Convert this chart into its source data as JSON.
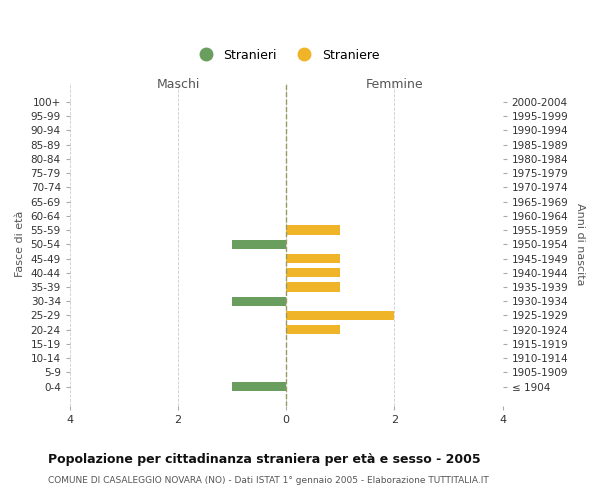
{
  "age_groups": [
    "100+",
    "95-99",
    "90-94",
    "85-89",
    "80-84",
    "75-79",
    "70-74",
    "65-69",
    "60-64",
    "55-59",
    "50-54",
    "45-49",
    "40-44",
    "35-39",
    "30-34",
    "25-29",
    "20-24",
    "15-19",
    "10-14",
    "5-9",
    "0-4"
  ],
  "birth_years": [
    "≤ 1904",
    "1905-1909",
    "1910-1914",
    "1915-1919",
    "1920-1924",
    "1925-1929",
    "1930-1934",
    "1935-1939",
    "1940-1944",
    "1945-1949",
    "1950-1954",
    "1955-1959",
    "1960-1964",
    "1965-1969",
    "1970-1974",
    "1975-1979",
    "1980-1984",
    "1985-1989",
    "1990-1994",
    "1995-1999",
    "2000-2004"
  ],
  "males": [
    0,
    0,
    0,
    0,
    0,
    0,
    0,
    0,
    0,
    0,
    1,
    0,
    0,
    0,
    1,
    0,
    0,
    0,
    0,
    0,
    1
  ],
  "females": [
    0,
    0,
    0,
    0,
    0,
    0,
    0,
    0,
    0,
    1,
    0,
    1,
    1,
    1,
    0,
    2,
    1,
    0,
    0,
    0,
    0
  ],
  "color_male": "#6a9e5e",
  "color_female": "#f0b429",
  "xlim": 4,
  "xlabel_left": "Maschi",
  "xlabel_right": "Femmine",
  "ylabel_left": "Fasce di età",
  "ylabel_right": "Anni di nascita",
  "legend_male": "Stranieri",
  "legend_female": "Straniere",
  "title": "Popolazione per cittadinanza straniera per età e sesso - 2005",
  "subtitle": "COMUNE DI CASALEGGIO NOVARA (NO) - Dati ISTAT 1° gennaio 2005 - Elaborazione TUTTITALIA.IT",
  "bg_color": "#ffffff",
  "grid_color": "#cccccc",
  "zero_line_color": "#999966",
  "xticks": [
    -4,
    -2,
    0,
    2,
    4
  ]
}
